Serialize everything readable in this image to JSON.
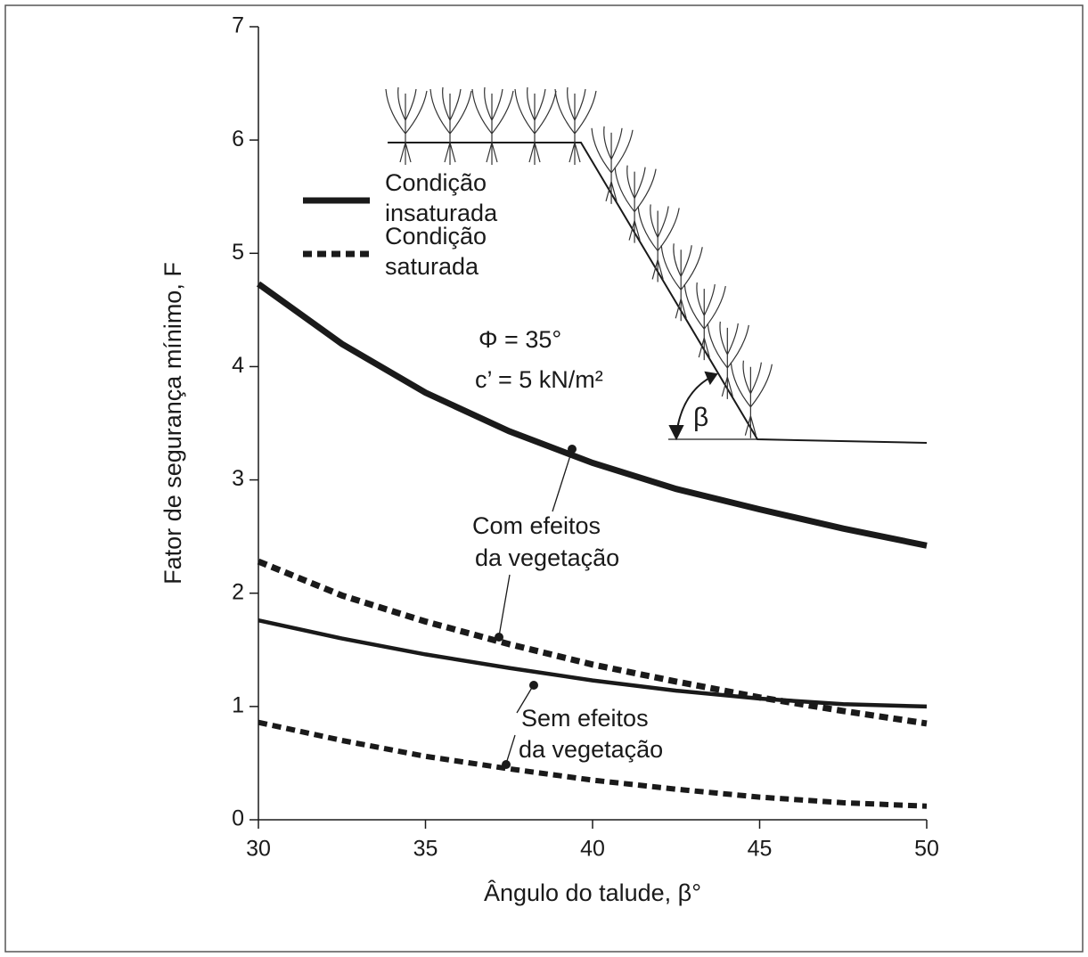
{
  "chart_data": {
    "type": "line",
    "x_label": "Ângulo do talude, β°",
    "y_label": "Fator de segurança mínimo, F",
    "xlim": [
      30,
      50
    ],
    "xticks": [
      30,
      35,
      40,
      45,
      50
    ],
    "ylim": [
      0,
      7
    ],
    "yticks": [
      0,
      1,
      2,
      3,
      4,
      5,
      6,
      7
    ],
    "x": [
      30,
      32.5,
      35,
      37.5,
      40,
      42.5,
      45,
      47.5,
      50
    ],
    "series": [
      {
        "values": [
          4.73,
          4.2,
          3.77,
          3.43,
          3.15,
          2.92,
          2.74,
          2.57,
          2.42
        ],
        "color": "#1a1a1a",
        "line_style": "solid"
      },
      {
        "values": [
          2.28,
          1.98,
          1.75,
          1.55,
          1.37,
          1.22,
          1.08,
          0.96,
          0.85
        ],
        "color": "#1a1a1a",
        "line_style": "dashed"
      },
      {
        "values": [
          1.76,
          1.6,
          1.46,
          1.34,
          1.23,
          1.14,
          1.07,
          1.02,
          1.0
        ],
        "color": "#1a1a1a",
        "line_style": "solid"
      },
      {
        "values": [
          0.86,
          0.7,
          0.56,
          0.45,
          0.35,
          0.27,
          0.2,
          0.15,
          0.12
        ],
        "color": "#1a1a1a",
        "line_style": "dashed"
      }
    ],
    "legend": [
      {
        "label": [
          "Condição",
          "insaturada"
        ],
        "line_style": "solid"
      },
      {
        "label": [
          "Condição",
          "saturada"
        ],
        "line_style": "dashed"
      }
    ],
    "annotations": {
      "with_vegetation": [
        "Com efeitos",
        "da vegetação"
      ],
      "without_vegetation": [
        "Sem efeitos",
        "da vegetação"
      ],
      "phi": "Φ = 35°",
      "cohesion": "c’ = 5 kN/m²",
      "angle": "β"
    }
  }
}
